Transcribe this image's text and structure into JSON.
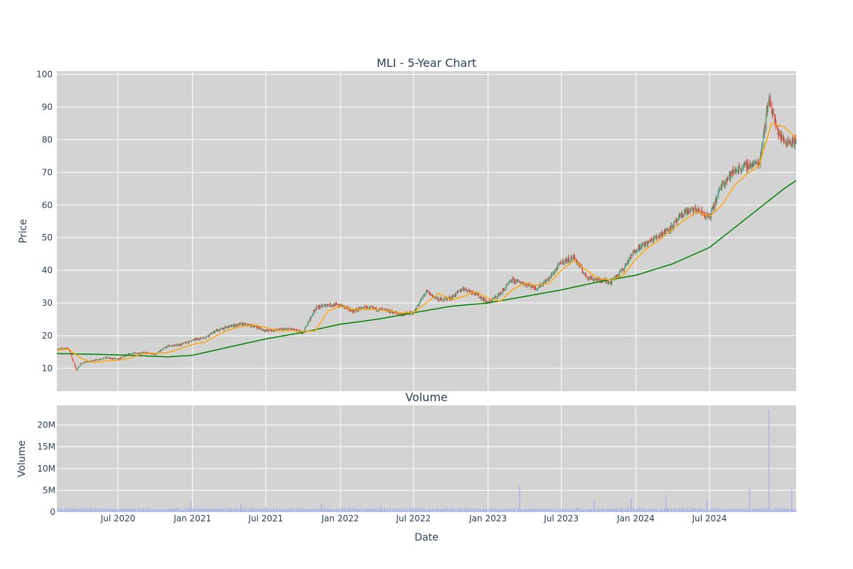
{
  "chart_data": [
    {
      "type": "candlestick",
      "title": "MLI - 5-Year Chart",
      "ylabel": "Price",
      "ylim": [
        3,
        101
      ],
      "yticks": [
        10,
        20,
        30,
        40,
        50,
        60,
        70,
        80,
        90,
        100
      ],
      "x_range": [
        "2020-02-01",
        "2025-01-31"
      ],
      "grid": true,
      "legend": "none",
      "colors": {
        "background": "#d3d3d3",
        "grid": "#ffffff",
        "increasing": "#3d9970",
        "decreasing": "#ef3e36",
        "ma_short": "#ffa500",
        "ma_long": "#008000"
      },
      "series": [
        {
          "kind": "close",
          "x": [
            "2020-02-01",
            "2020-03-01",
            "2020-03-20",
            "2020-04-01",
            "2020-05-01",
            "2020-06-01",
            "2020-07-01",
            "2020-08-01",
            "2020-09-01",
            "2020-10-01",
            "2020-11-01",
            "2020-12-01",
            "2021-01-01",
            "2021-02-01",
            "2021-03-01",
            "2021-04-01",
            "2021-05-01",
            "2021-06-01",
            "2021-07-01",
            "2021-08-01",
            "2021-09-01",
            "2021-10-01",
            "2021-11-01",
            "2021-12-01",
            "2022-01-01",
            "2022-02-01",
            "2022-03-01",
            "2022-04-01",
            "2022-05-01",
            "2022-06-01",
            "2022-07-01",
            "2022-08-01",
            "2022-09-01",
            "2022-10-01",
            "2022-11-01",
            "2022-12-01",
            "2023-01-01",
            "2023-02-01",
            "2023-03-01",
            "2023-04-01",
            "2023-05-01",
            "2023-06-01",
            "2023-07-01",
            "2023-08-01",
            "2023-09-01",
            "2023-10-01",
            "2023-11-01",
            "2023-12-01",
            "2024-01-01",
            "2024-02-01",
            "2024-03-01",
            "2024-04-01",
            "2024-05-01",
            "2024-06-01",
            "2024-07-01",
            "2024-08-01",
            "2024-09-01",
            "2024-10-01",
            "2024-11-01",
            "2024-11-25",
            "2024-12-15",
            "2025-01-01",
            "2025-01-31"
          ],
          "values": [
            15.8,
            16.2,
            9.5,
            11.5,
            12.4,
            13.2,
            12.8,
            14.5,
            14.8,
            14.3,
            16.8,
            17.2,
            18.6,
            19.5,
            21.5,
            22.8,
            23.5,
            23.0,
            21.5,
            21.8,
            22.0,
            21.0,
            28.5,
            29.5,
            29.3,
            27.5,
            28.6,
            28.2,
            27.5,
            26.5,
            27.0,
            33.5,
            31.0,
            31.5,
            34.5,
            33.0,
            30.0,
            33.0,
            37.0,
            36.0,
            34.5,
            37.5,
            42.5,
            44.0,
            38.0,
            37.0,
            36.5,
            40.5,
            46.5,
            48.5,
            51.0,
            53.5,
            58.0,
            58.5,
            56.0,
            66.5,
            70.5,
            72.0,
            73.0,
            93.0,
            83.0,
            79.5,
            79.5
          ]
        },
        {
          "kind": "ma_short",
          "x": [
            "2020-02-01",
            "2020-03-01",
            "2020-04-01",
            "2020-05-01",
            "2020-06-01",
            "2020-07-01",
            "2020-08-01",
            "2020-09-01",
            "2020-10-01",
            "2020-11-01",
            "2020-12-01",
            "2021-01-01",
            "2021-02-01",
            "2021-03-01",
            "2021-04-01",
            "2021-05-01",
            "2021-06-01",
            "2021-07-01",
            "2021-08-01",
            "2021-09-01",
            "2021-10-01",
            "2021-11-01",
            "2021-12-01",
            "2022-01-01",
            "2022-02-01",
            "2022-03-01",
            "2022-04-01",
            "2022-05-01",
            "2022-06-01",
            "2022-07-01",
            "2022-08-01",
            "2022-09-01",
            "2022-10-01",
            "2022-11-01",
            "2022-12-01",
            "2023-01-01",
            "2023-02-01",
            "2023-03-01",
            "2023-04-01",
            "2023-05-01",
            "2023-06-01",
            "2023-07-01",
            "2023-08-01",
            "2023-09-01",
            "2023-10-01",
            "2023-11-01",
            "2023-12-01",
            "2024-01-01",
            "2024-02-01",
            "2024-03-01",
            "2024-04-01",
            "2024-05-01",
            "2024-06-01",
            "2024-07-01",
            "2024-08-01",
            "2024-09-01",
            "2024-10-01",
            "2024-11-01",
            "2024-12-01",
            "2025-01-01",
            "2025-01-31"
          ],
          "values": [
            15.5,
            15.9,
            13.0,
            11.8,
            12.2,
            12.5,
            13.2,
            14.5,
            14.6,
            14.8,
            16.0,
            17.3,
            18.0,
            20.0,
            21.8,
            22.8,
            23.3,
            22.5,
            21.5,
            21.6,
            21.2,
            21.5,
            27.5,
            29.0,
            28.0,
            28.2,
            28.0,
            27.6,
            27.0,
            27.0,
            30.0,
            33.0,
            31.0,
            32.0,
            33.5,
            31.5,
            30.5,
            34.0,
            36.0,
            35.5,
            36.0,
            40.0,
            43.0,
            40.0,
            37.5,
            37.0,
            38.5,
            43.5,
            47.0,
            49.5,
            52.5,
            55.5,
            58.0,
            56.5,
            60.0,
            66.0,
            69.5,
            72.0,
            85.0,
            84.0,
            80.5
          ]
        },
        {
          "kind": "ma_long",
          "x": [
            "2020-02-01",
            "2020-05-01",
            "2020-08-01",
            "2020-11-01",
            "2021-01-01",
            "2021-04-01",
            "2021-07-01",
            "2021-10-01",
            "2022-01-01",
            "2022-04-01",
            "2022-07-01",
            "2022-10-01",
            "2023-01-01",
            "2023-04-01",
            "2023-07-01",
            "2023-10-01",
            "2024-01-01",
            "2024-04-01",
            "2024-07-01",
            "2024-10-01",
            "2025-01-01",
            "2025-01-31"
          ],
          "values": [
            14.5,
            14.3,
            14.0,
            13.5,
            14.0,
            16.5,
            19.0,
            21.0,
            23.5,
            25.0,
            27.0,
            29.0,
            30.0,
            32.0,
            34.0,
            36.5,
            38.5,
            42.0,
            47.0,
            56.0,
            65.0,
            67.5
          ]
        }
      ]
    },
    {
      "type": "bar",
      "title": "Volume",
      "xlabel": "Date",
      "ylabel": "Volume",
      "ylim": [
        0,
        24500000
      ],
      "yticks": [
        0,
        5000000,
        10000000,
        15000000,
        20000000
      ],
      "ytick_labels": [
        "0",
        "5M",
        "10M",
        "15M",
        "20M"
      ],
      "xticks": [
        "2020-07-01",
        "2021-01-01",
        "2021-07-01",
        "2022-01-01",
        "2022-07-01",
        "2023-01-01",
        "2023-07-01",
        "2024-01-01",
        "2024-07-01"
      ],
      "xtick_labels": [
        "Jul 2020",
        "Jan 2021",
        "Jul 2021",
        "Jan 2022",
        "Jul 2022",
        "Jan 2023",
        "Jul 2023",
        "Jan 2024",
        "Jul 2024"
      ],
      "baseline_volume": 700000,
      "spikes": [
        {
          "x": "2020-12-28",
          "value": 2600000
        },
        {
          "x": "2021-05-01",
          "value": 2100000
        },
        {
          "x": "2021-11-15",
          "value": 1800000
        },
        {
          "x": "2022-04-10",
          "value": 1500000
        },
        {
          "x": "2023-03-20",
          "value": 6200000
        },
        {
          "x": "2023-09-20",
          "value": 2700000
        },
        {
          "x": "2023-12-20",
          "value": 3200000
        },
        {
          "x": "2024-03-15",
          "value": 3900000
        },
        {
          "x": "2024-06-25",
          "value": 3000000
        },
        {
          "x": "2024-10-08",
          "value": 5200000
        },
        {
          "x": "2024-11-25",
          "value": 23500000
        },
        {
          "x": "2025-01-20",
          "value": 5000000
        }
      ],
      "color": "#aeb4e8"
    }
  ]
}
